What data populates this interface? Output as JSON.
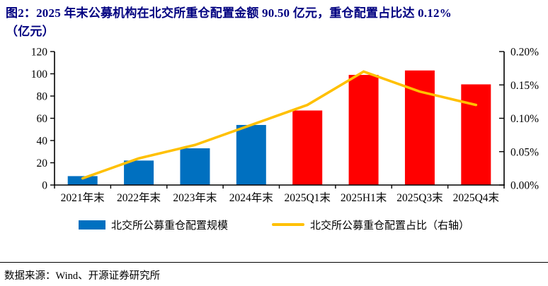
{
  "figure": {
    "title_line1": "图2：2025 年末公募机构在北交所重仓配置金额 90.50 亿元，重仓配置占比达 0.12%",
    "title_line2": "（亿元）",
    "source": "数据来源：Wind、开源证券研究所"
  },
  "colors": {
    "title_navy": "#000080",
    "bar_blue": "#0070C0",
    "bar_red": "#FF0000",
    "line_yellow": "#FFC000",
    "axis_black": "#000000"
  },
  "legend": {
    "items": [
      {
        "label": "北交所公募重仓配置规模",
        "swatch": "bar",
        "color": "#0070C0"
      },
      {
        "label": "北交所公募重仓配置占比（右轴）",
        "swatch": "line",
        "color": "#FFC000"
      }
    ]
  },
  "chart_data": {
    "type": "bar",
    "subtype": "bar+line combo, dual axis",
    "categories": [
      "2021年末",
      "2022年末",
      "2023年末",
      "2024年末",
      "2025Q1末",
      "2025H1末",
      "2025Q3末",
      "2025Q4末"
    ],
    "series": [
      {
        "name": "北交所公募重仓配置规模",
        "type": "bar",
        "axis": "left",
        "values": [
          8,
          22,
          33,
          54,
          67,
          99,
          103,
          90.5
        ],
        "colors": [
          "#0070C0",
          "#0070C0",
          "#0070C0",
          "#0070C0",
          "#FF0000",
          "#FF0000",
          "#FF0000",
          "#FF0000"
        ]
      },
      {
        "name": "北交所公募重仓配置占比（右轴）",
        "type": "line",
        "axis": "right",
        "values": [
          0.01,
          0.04,
          0.06,
          0.09,
          0.12,
          0.17,
          0.14,
          0.12
        ],
        "color": "#FFC000"
      }
    ],
    "left_axis": {
      "min": 0,
      "max": 120,
      "step": 20,
      "tick_labels": [
        "0",
        "20",
        "40",
        "60",
        "80",
        "100",
        "120"
      ]
    },
    "right_axis": {
      "min": 0,
      "max": 0.2,
      "step": 0.05,
      "tick_labels": [
        "0.00%",
        "0.05%",
        "0.10%",
        "0.15%",
        "0.20%"
      ]
    },
    "grid": false,
    "legend_position": "bottom"
  }
}
